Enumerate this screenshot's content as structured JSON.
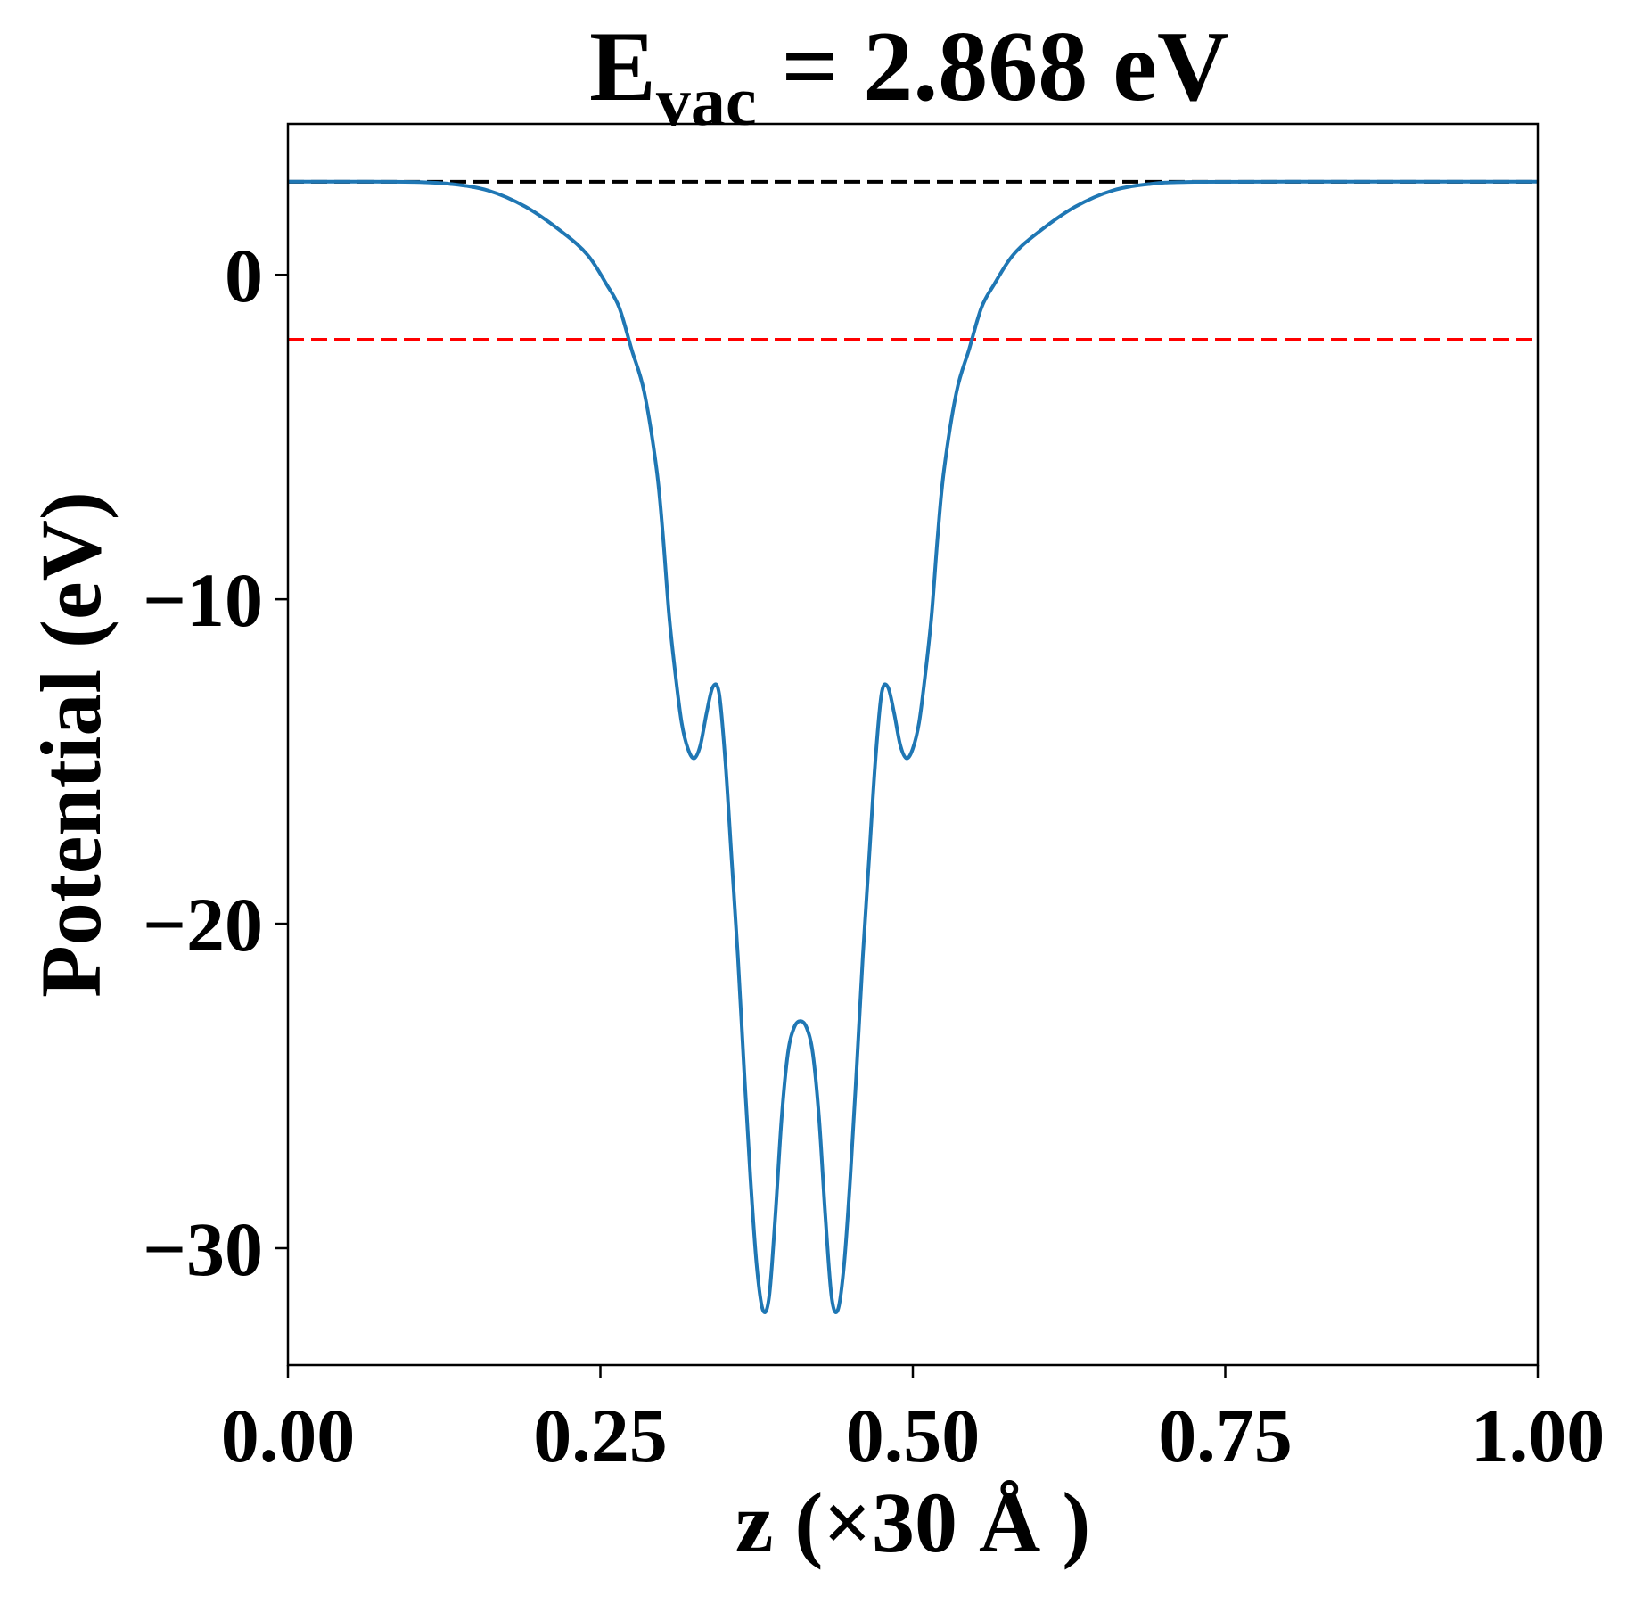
{
  "chart_data": {
    "type": "line",
    "title": "E",
    "title_sub": "vac",
    "title_rest": " = 2.868 eV",
    "xlabel": "z (×30 Å )",
    "ylabel": "Potential (eV)",
    "xlim": [
      0,
      1
    ],
    "ylim": [
      -33.6,
      4.65
    ],
    "grid": false,
    "xticks": [
      0,
      0.25,
      0.5,
      0.75,
      1.0
    ],
    "xtick_labels": [
      "0.00",
      "0.25",
      "0.50",
      "0.75",
      "1.00"
    ],
    "yticks": [
      0,
      -10,
      -20,
      -30
    ],
    "ytick_labels": [
      "0",
      "−10",
      "−20",
      "−30"
    ],
    "hlines": [
      {
        "y": 2.868,
        "color": "#000000",
        "style": "dashed"
      },
      {
        "y": -2.0,
        "color": "#ff0000",
        "style": "dashed"
      }
    ],
    "series": [
      {
        "color": "#1f77b4",
        "x": [
          0,
          0.05,
          0.1,
          0.13,
          0.16,
          0.19,
          0.22,
          0.24,
          0.255,
          0.265,
          0.275,
          0.285,
          0.295,
          0.3,
          0.305,
          0.31,
          0.315,
          0.32,
          0.325,
          0.33,
          0.335,
          0.34,
          0.345,
          0.35,
          0.355,
          0.36,
          0.365,
          0.37,
          0.375,
          0.38,
          0.385,
          0.39,
          0.395,
          0.4,
          0.405,
          0.41,
          0.415,
          0.42,
          0.425,
          0.43,
          0.435,
          0.44,
          0.445,
          0.45,
          0.455,
          0.46,
          0.465,
          0.47,
          0.475,
          0.48,
          0.485,
          0.49,
          0.495,
          0.5,
          0.505,
          0.51,
          0.515,
          0.52,
          0.525,
          0.535,
          0.545,
          0.555,
          0.565,
          0.58,
          0.6,
          0.63,
          0.66,
          0.69,
          0.72,
          0.8,
          1.0
        ],
        "y": [
          2.87,
          2.87,
          2.86,
          2.8,
          2.6,
          2.1,
          1.3,
          0.6,
          -0.3,
          -1.0,
          -2.3,
          -3.6,
          -6,
          -8,
          -10.5,
          -12.3,
          -13.8,
          -14.6,
          -14.9,
          -14.5,
          -13.5,
          -12.7,
          -12.9,
          -15,
          -18,
          -21,
          -24.5,
          -27.8,
          -30.5,
          -31.9,
          -31.5,
          -29,
          -26,
          -24,
          -23.2,
          -23.0,
          -23.2,
          -24,
          -26,
          -29,
          -31.5,
          -31.9,
          -30.5,
          -27.8,
          -24.5,
          -21,
          -18,
          -15,
          -12.9,
          -12.7,
          -13.5,
          -14.5,
          -14.9,
          -14.6,
          -13.8,
          -12.3,
          -10.5,
          -8,
          -6,
          -3.6,
          -2.3,
          -1.0,
          -0.3,
          0.6,
          1.3,
          2.1,
          2.6,
          2.8,
          2.86,
          2.87,
          2.87
        ]
      }
    ]
  }
}
